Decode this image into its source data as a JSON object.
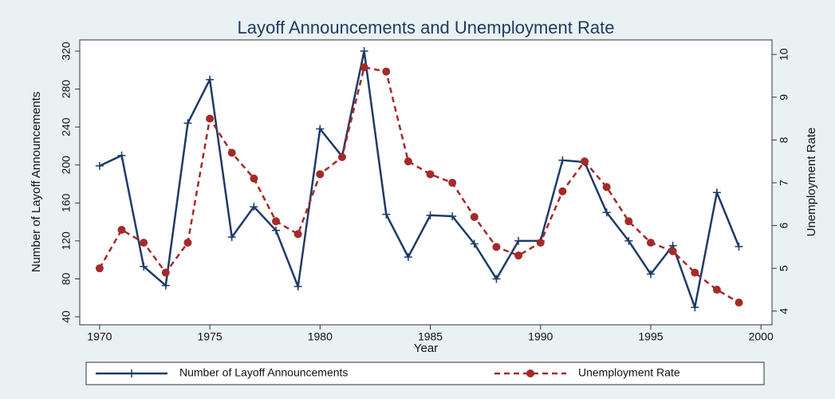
{
  "chart_data": {
    "type": "line",
    "title": "Layoff Announcements and Unemployment Rate",
    "x_label": "Year",
    "y_label": "Number of Layoff Announcements",
    "y2_label": "Unemployment Rate",
    "x": [
      1970,
      1971,
      1972,
      1973,
      1974,
      1975,
      1976,
      1977,
      1978,
      1979,
      1980,
      1981,
      1982,
      1983,
      1984,
      1985,
      1986,
      1987,
      1988,
      1989,
      1990,
      1991,
      1992,
      1993,
      1994,
      1995,
      1996,
      1997,
      1998,
      1999
    ],
    "series": [
      {
        "name": "Number of Layoff Announcements",
        "color": "#1f3a68",
        "values": [
          199,
          210,
          93,
          73,
          244,
          290,
          124,
          156,
          131,
          72,
          238,
          209,
          320,
          148,
          103,
          147,
          146,
          117,
          80,
          120,
          120,
          205,
          203,
          150,
          120,
          85,
          115,
          50,
          171,
          114
        ]
      },
      {
        "name": "Unemployment Rate",
        "color": "#a52a2a",
        "axis": "y2",
        "values": [
          5.0,
          5.9,
          5.6,
          4.9,
          5.6,
          8.5,
          7.7,
          7.1,
          6.1,
          5.8,
          7.2,
          7.6,
          9.7,
          9.6,
          7.5,
          7.2,
          7.0,
          6.2,
          5.5,
          5.3,
          5.6,
          6.8,
          7.5,
          6.9,
          6.1,
          5.6,
          5.4,
          4.9,
          4.5,
          4.2
        ]
      }
    ],
    "xlim": [
      1969.1,
      2000.5
    ],
    "xticks": [
      1970,
      1975,
      1980,
      1985,
      1990,
      1995,
      2000
    ],
    "ylim": [
      31.6,
      331.8
    ],
    "yticks": [
      40,
      80,
      120,
      160,
      200,
      240,
      280,
      320
    ],
    "y2lim": [
      3.68,
      10.34
    ],
    "y2ticks": [
      4,
      5,
      6,
      7,
      8,
      9,
      10
    ],
    "grid": false,
    "legend": "bottom"
  }
}
